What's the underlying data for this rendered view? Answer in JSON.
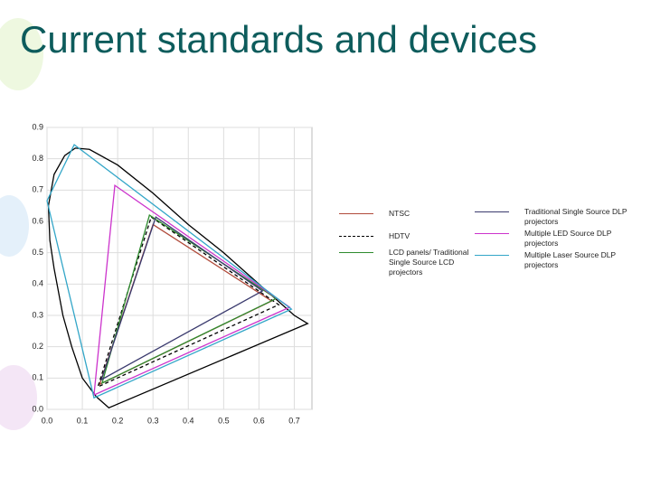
{
  "title": "Current standards and devices",
  "chart_data": {
    "type": "line",
    "xlim": [
      0,
      0.75
    ],
    "ylim": [
      0,
      0.9
    ],
    "xticks": [
      {
        "value": 0,
        "label": "0.0"
      },
      0.1,
      0.2,
      0.3,
      0.4,
      0.5,
      0.6,
      0.7
    ],
    "yticks": [
      {
        "value": 0,
        "label": "0.0"
      },
      0.1,
      0.2,
      0.3,
      0.4,
      0.5,
      0.6,
      0.7,
      0.8,
      0.9
    ],
    "grid": true,
    "series": [
      {
        "color": "#000000",
        "closed": true,
        "x": [
          0.175,
          0.14,
          0.1,
          0.07,
          0.045,
          0.02,
          0.008,
          0.004,
          0.02,
          0.05,
          0.08,
          0.12,
          0.2,
          0.3,
          0.4,
          0.5,
          0.6,
          0.7,
          0.738
        ],
        "y": [
          0.005,
          0.04,
          0.1,
          0.2,
          0.3,
          0.45,
          0.54,
          0.65,
          0.75,
          0.81,
          0.834,
          0.83,
          0.78,
          0.69,
          0.59,
          0.5,
          0.4,
          0.3,
          0.274
        ]
      },
      {
        "name": "NTSC",
        "color": "#b04a3a",
        "closed": true,
        "x": [
          0.3,
          0.636,
          0.149
        ],
        "y": [
          0.59,
          0.346,
          0.08
        ]
      },
      {
        "name": "HDTV",
        "color": "#000000",
        "dashed": true,
        "closed": true,
        "x": [
          0.295,
          0.656,
          0.144
        ],
        "y": [
          0.614,
          0.334,
          0.072
        ]
      },
      {
        "name": "LCD panels/ Traditional Single Source LCD projectors",
        "color": "#2e8b2e",
        "closed": true,
        "x": [
          0.29,
          0.649,
          0.156
        ],
        "y": [
          0.62,
          0.354,
          0.084
        ]
      },
      {
        "name": "Traditional Single Source DLP projectors",
        "color": "#3a3a6e",
        "closed": true,
        "x": [
          0.308,
          0.61,
          0.154
        ],
        "y": [
          0.614,
          0.378,
          0.095
        ]
      },
      {
        "name": "Multiple LED Source DLP projectors",
        "color": "#cc33cc",
        "closed": true,
        "x": [
          0.192,
          0.687,
          0.133
        ],
        "y": [
          0.715,
          0.326,
          0.046
        ]
      },
      {
        "name": "Multiple Laser Source DLP projectors",
        "color": "#33a6c8",
        "closed": true,
        "x": [
          0,
          0.077,
          0.692,
          0.133
        ],
        "y": [
          0.666,
          0.845,
          0.32,
          0.037
        ]
      }
    ]
  }
}
